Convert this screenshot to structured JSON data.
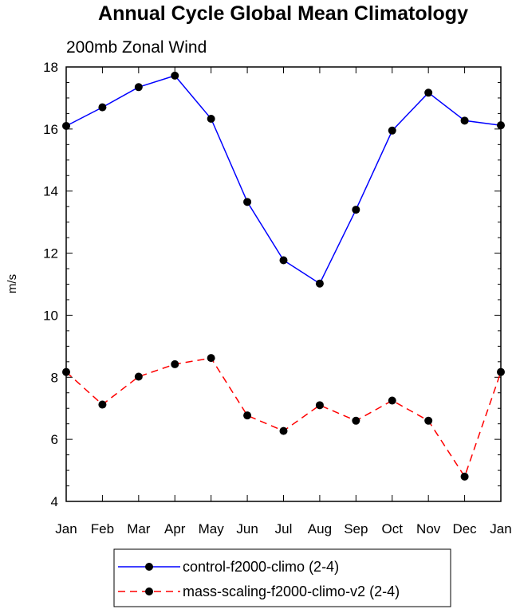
{
  "chart_data": {
    "type": "line",
    "title": "Annual Cycle Global Mean Climatology",
    "subtitle": "200mb Zonal Wind",
    "xlabel": "",
    "ylabel": "m/s",
    "categories": [
      "Jan",
      "Feb",
      "Mar",
      "Apr",
      "May",
      "Jun",
      "Jul",
      "Aug",
      "Sep",
      "Oct",
      "Nov",
      "Dec",
      "Jan"
    ],
    "ylim": [
      4,
      18
    ],
    "yticks": [
      4,
      6,
      8,
      10,
      12,
      14,
      16,
      18
    ],
    "grid": false,
    "legend_position": "bottom",
    "series": [
      {
        "name": "control-f2000-climo (2-4)",
        "color": "#0000ff",
        "line_style": "solid",
        "marker": "filled-circle",
        "values": [
          16.1,
          16.7,
          17.35,
          17.72,
          16.33,
          13.65,
          11.77,
          11.02,
          13.4,
          15.95,
          17.17,
          16.27,
          16.12
        ]
      },
      {
        "name": "mass-scaling-f2000-climo-v2 (2-4)",
        "color": "#ff0000",
        "line_style": "dashed",
        "marker": "filled-circle",
        "values": [
          8.17,
          7.12,
          8.02,
          8.42,
          8.62,
          6.77,
          6.27,
          7.1,
          6.6,
          7.25,
          6.6,
          4.8,
          8.17
        ]
      }
    ]
  }
}
